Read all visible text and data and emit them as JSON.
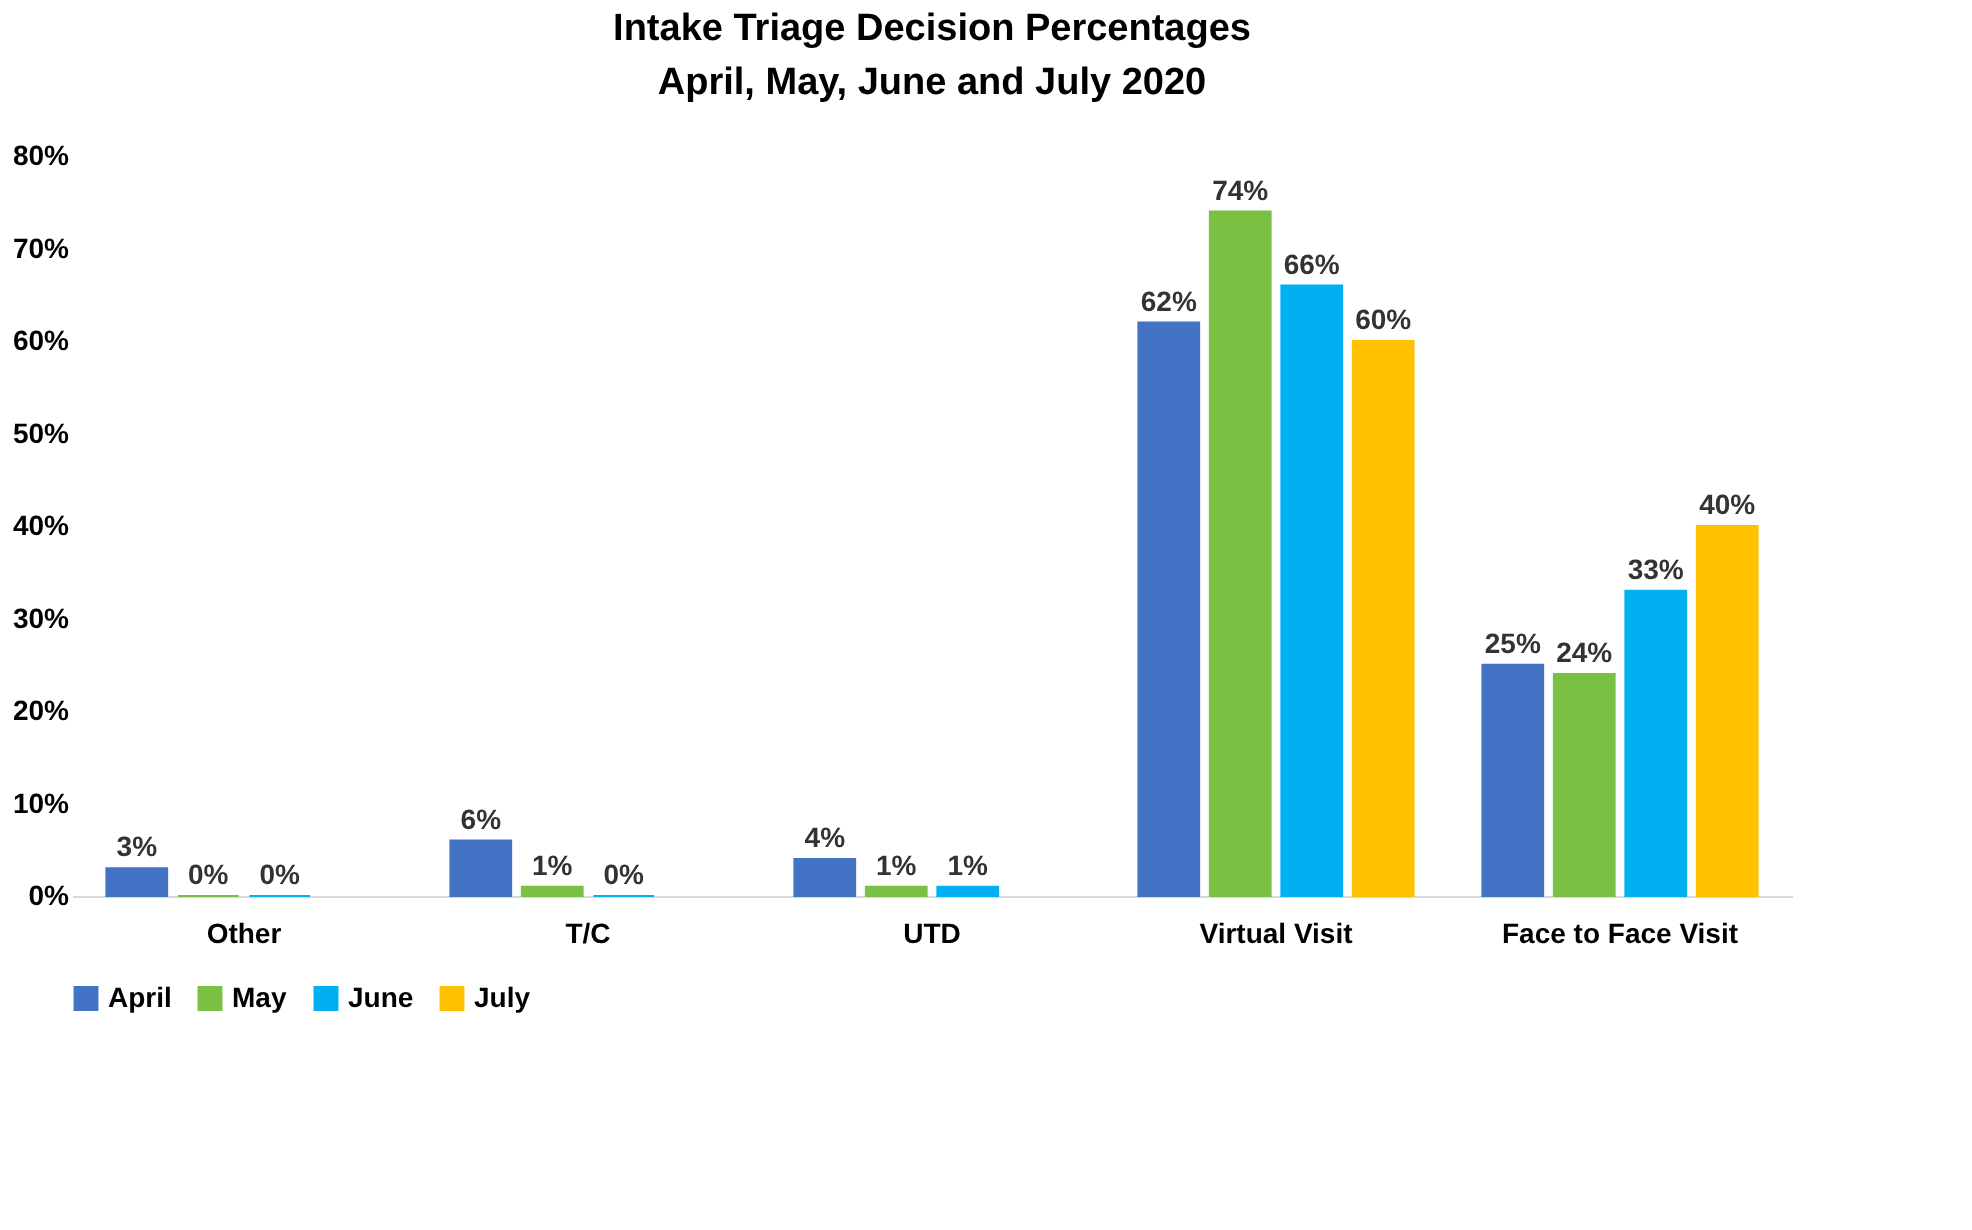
{
  "chart_data": {
    "type": "bar",
    "title": "Intake Triage Decision Percentages",
    "subtitle": "April, May, June and July 2020",
    "categories": [
      "Other",
      "T/C",
      "UTD",
      "Virtual Visit",
      "Face to Face Visit"
    ],
    "series": [
      {
        "name": "April",
        "color": "#4472c4",
        "values": [
          3,
          6,
          4,
          62,
          25
        ],
        "value_labels": [
          "3%",
          "6%",
          "4%",
          "62%",
          "25%"
        ]
      },
      {
        "name": "May",
        "color": "#7ac143",
        "values": [
          0,
          1,
          1,
          74,
          24
        ],
        "value_labels": [
          "0%",
          "1%",
          "1%",
          "74%",
          "24%"
        ]
      },
      {
        "name": "June",
        "color": "#00b0f0",
        "values": [
          0,
          0,
          1,
          66,
          33
        ],
        "value_labels": [
          "0%",
          "0%",
          "1%",
          "66%",
          "33%"
        ]
      },
      {
        "name": "July",
        "color": "#ffc000",
        "values": [
          null,
          null,
          null,
          60,
          40
        ],
        "value_labels": [
          null,
          null,
          null,
          "60%",
          "40%"
        ]
      }
    ],
    "ylim": [
      0,
      80
    ],
    "yticks": [
      {
        "value": 0,
        "label": "0%"
      },
      {
        "value": 10,
        "label": "10%"
      },
      {
        "value": 20,
        "label": "20%"
      },
      {
        "value": 30,
        "label": "30%"
      },
      {
        "value": 40,
        "label": "40%"
      },
      {
        "value": 50,
        "label": "50%"
      },
      {
        "value": 60,
        "label": "60%"
      },
      {
        "value": 70,
        "label": "70%"
      },
      {
        "value": 80,
        "label": "80%"
      }
    ],
    "legend": "bottom",
    "grid": false
  }
}
